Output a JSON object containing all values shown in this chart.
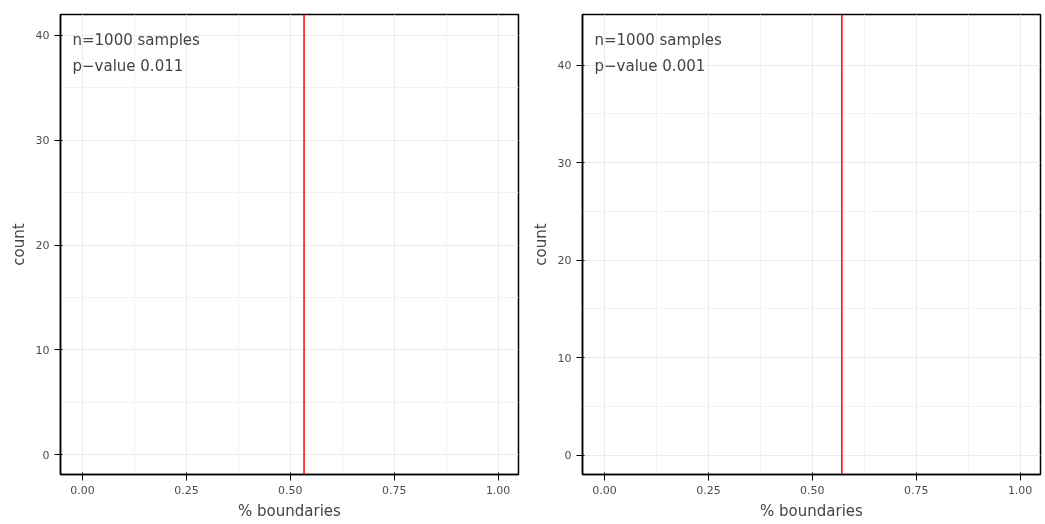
{
  "chart_data": [
    {
      "type": "histogram",
      "xlabel": "% boundaries",
      "ylabel": "count",
      "annotations": [
        "n=1000 samples",
        "p−value 0.011"
      ],
      "xlim": [
        -0.053,
        1.049
      ],
      "ylim": [
        -1.9,
        42
      ],
      "xticks": [
        {
          "value": 0,
          "label": "0.00"
        },
        {
          "value": 0.25,
          "label": "0.25"
        },
        {
          "value": 0.5,
          "label": "0.50"
        },
        {
          "value": 0.75,
          "label": "0.75"
        },
        {
          "value": 1,
          "label": "1.00"
        }
      ],
      "yticks": [
        0,
        10,
        20,
        30,
        40
      ],
      "grid": true,
      "ref_lines": [
        {
          "axis": "x",
          "value": 0.533,
          "color": "#ff0000"
        }
      ]
    },
    {
      "type": "histogram",
      "xlabel": "% boundaries",
      "ylabel": "count",
      "annotations": [
        "n=1000 samples",
        "p−value 0.001"
      ],
      "xlim": [
        -0.053,
        1.049
      ],
      "ylim": [
        -2,
        45.2
      ],
      "xticks": [
        {
          "value": 0,
          "label": "0.00"
        },
        {
          "value": 0.25,
          "label": "0.25"
        },
        {
          "value": 0.5,
          "label": "0.50"
        },
        {
          "value": 0.75,
          "label": "0.75"
        },
        {
          "value": 1,
          "label": "1.00"
        }
      ],
      "yticks": [
        0,
        10,
        20,
        30,
        40
      ],
      "grid": true,
      "ref_lines": [
        {
          "axis": "x",
          "value": 0.571,
          "color": "#ff0000"
        }
      ]
    }
  ]
}
